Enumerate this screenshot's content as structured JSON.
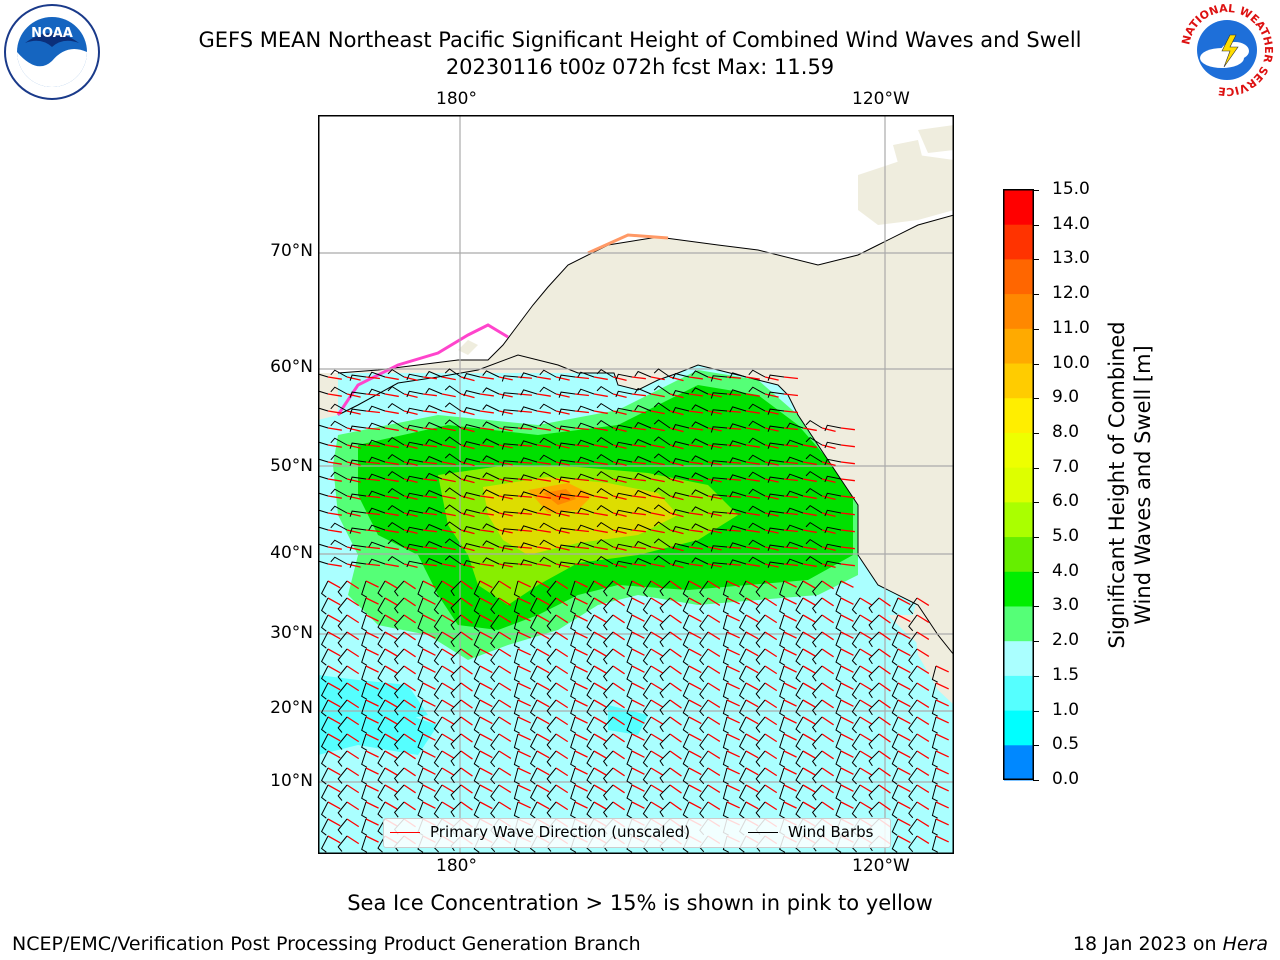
{
  "header": {
    "title_line1": "GEFS MEAN Northeast Pacific Significant Height of Combined Wind Waves and Swell",
    "title_line2": "20230116 t00z 072h fcst   Max: 11.59"
  },
  "logos": {
    "noara_text": "NOAA",
    "nws_text": "NATIONAL WEATHER SERVICE"
  },
  "map": {
    "lon_labels_top": [
      "180°",
      "120°W"
    ],
    "lon_labels_bottom": [
      "180°",
      "120°W"
    ],
    "lat_labels": [
      "70°N",
      "60°N",
      "50°N",
      "40°N",
      "30°N",
      "20°N",
      "10°N"
    ],
    "colors": {
      "ocean_low": "#aaffff",
      "ocean_cyan": "#55ffff",
      "wave_green_light": "#55ff77",
      "wave_green": "#00e000",
      "wave_lime": "#88ee00",
      "wave_yellow": "#dddd00",
      "wave_orange": "#ff9900",
      "land": "#efedde"
    }
  },
  "legend": {
    "items": [
      {
        "label": "Primary Wave Direction (unscaled)",
        "color": "#ff0000"
      },
      {
        "label": "Wind Barbs",
        "color": "#000000"
      }
    ]
  },
  "colorbar": {
    "ticks": [
      "15.0",
      "14.0",
      "13.0",
      "12.0",
      "11.0",
      "10.0",
      "9.0",
      "8.0",
      "7.0",
      "6.0",
      "5.0",
      "4.0",
      "3.0",
      "2.0",
      "1.5",
      "1.0",
      "0.5",
      "0.0"
    ],
    "colors": [
      "#ff0000",
      "#ff3300",
      "#ff6600",
      "#ff8800",
      "#ffaa00",
      "#ffcc00",
      "#ffee00",
      "#eeff00",
      "#ddff00",
      "#aaff00",
      "#66ee00",
      "#00ee00",
      "#55ff77",
      "#aaffff",
      "#55ffff",
      "#00ffff",
      "#0088ff",
      "#0000ff"
    ],
    "label_line1": "Significant Height of Combined",
    "label_line2": "Wind Waves and Swell [m]"
  },
  "caption": "Sea Ice Concentration > 15% is shown in pink to yellow",
  "footer": {
    "left": "NCEP/EMC/Verification Post Processing Product Generation Branch",
    "right_date": "18 Jan 2023 on ",
    "right_host": "Hera"
  }
}
